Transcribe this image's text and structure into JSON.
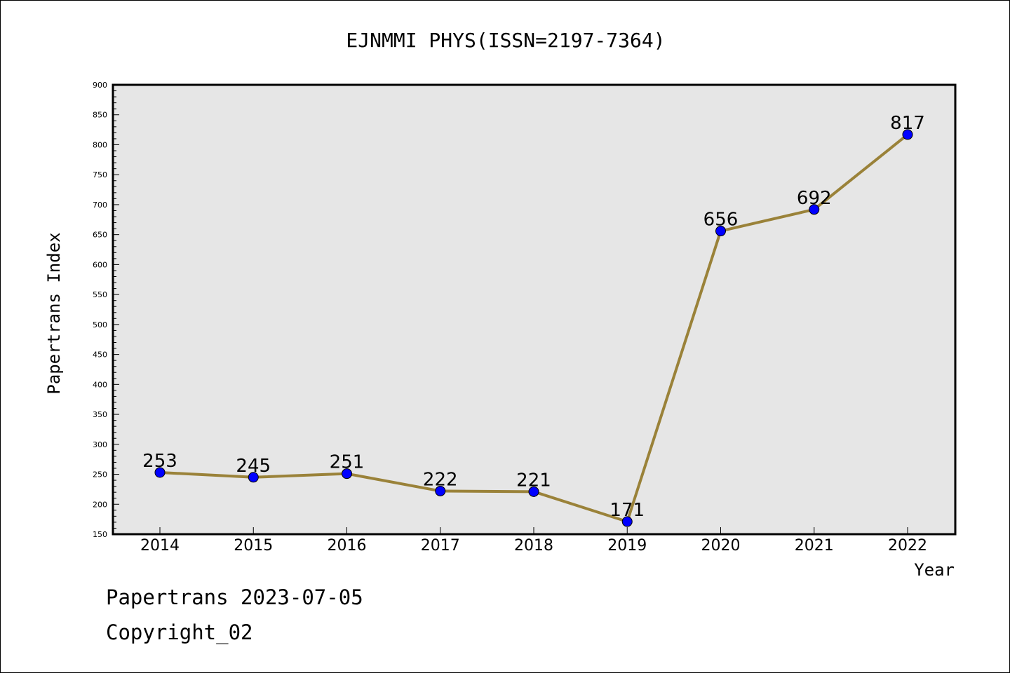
{
  "chart_data": {
    "type": "line",
    "title": "EJNMMI PHYS(ISSN=2197-7364)",
    "xlabel": "Year",
    "ylabel": "Papertrans Index",
    "categories": [
      "2014",
      "2015",
      "2016",
      "2017",
      "2018",
      "2019",
      "2020",
      "2021",
      "2022"
    ],
    "series": [
      {
        "values": [
          253,
          245,
          251,
          222,
          221,
          171,
          656,
          692,
          817
        ],
        "data_labels": [
          "253",
          "245",
          "251",
          "222",
          "221",
          "171",
          "656",
          "692",
          "817"
        ]
      }
    ],
    "ylim": [
      150,
      900
    ],
    "yticks": [
      "150",
      "200",
      "250",
      "300",
      "350",
      "400",
      "450",
      "500",
      "550",
      "600",
      "650",
      "700",
      "750",
      "800",
      "850",
      "900"
    ],
    "grid": false,
    "legend": "none"
  },
  "colors": {
    "line": "#9a8239",
    "marker": "#0000ff",
    "plot_background": "#e6e6e6"
  },
  "footer": {
    "line1": "Papertrans 2023-07-05",
    "line2": "Copyright_02"
  }
}
